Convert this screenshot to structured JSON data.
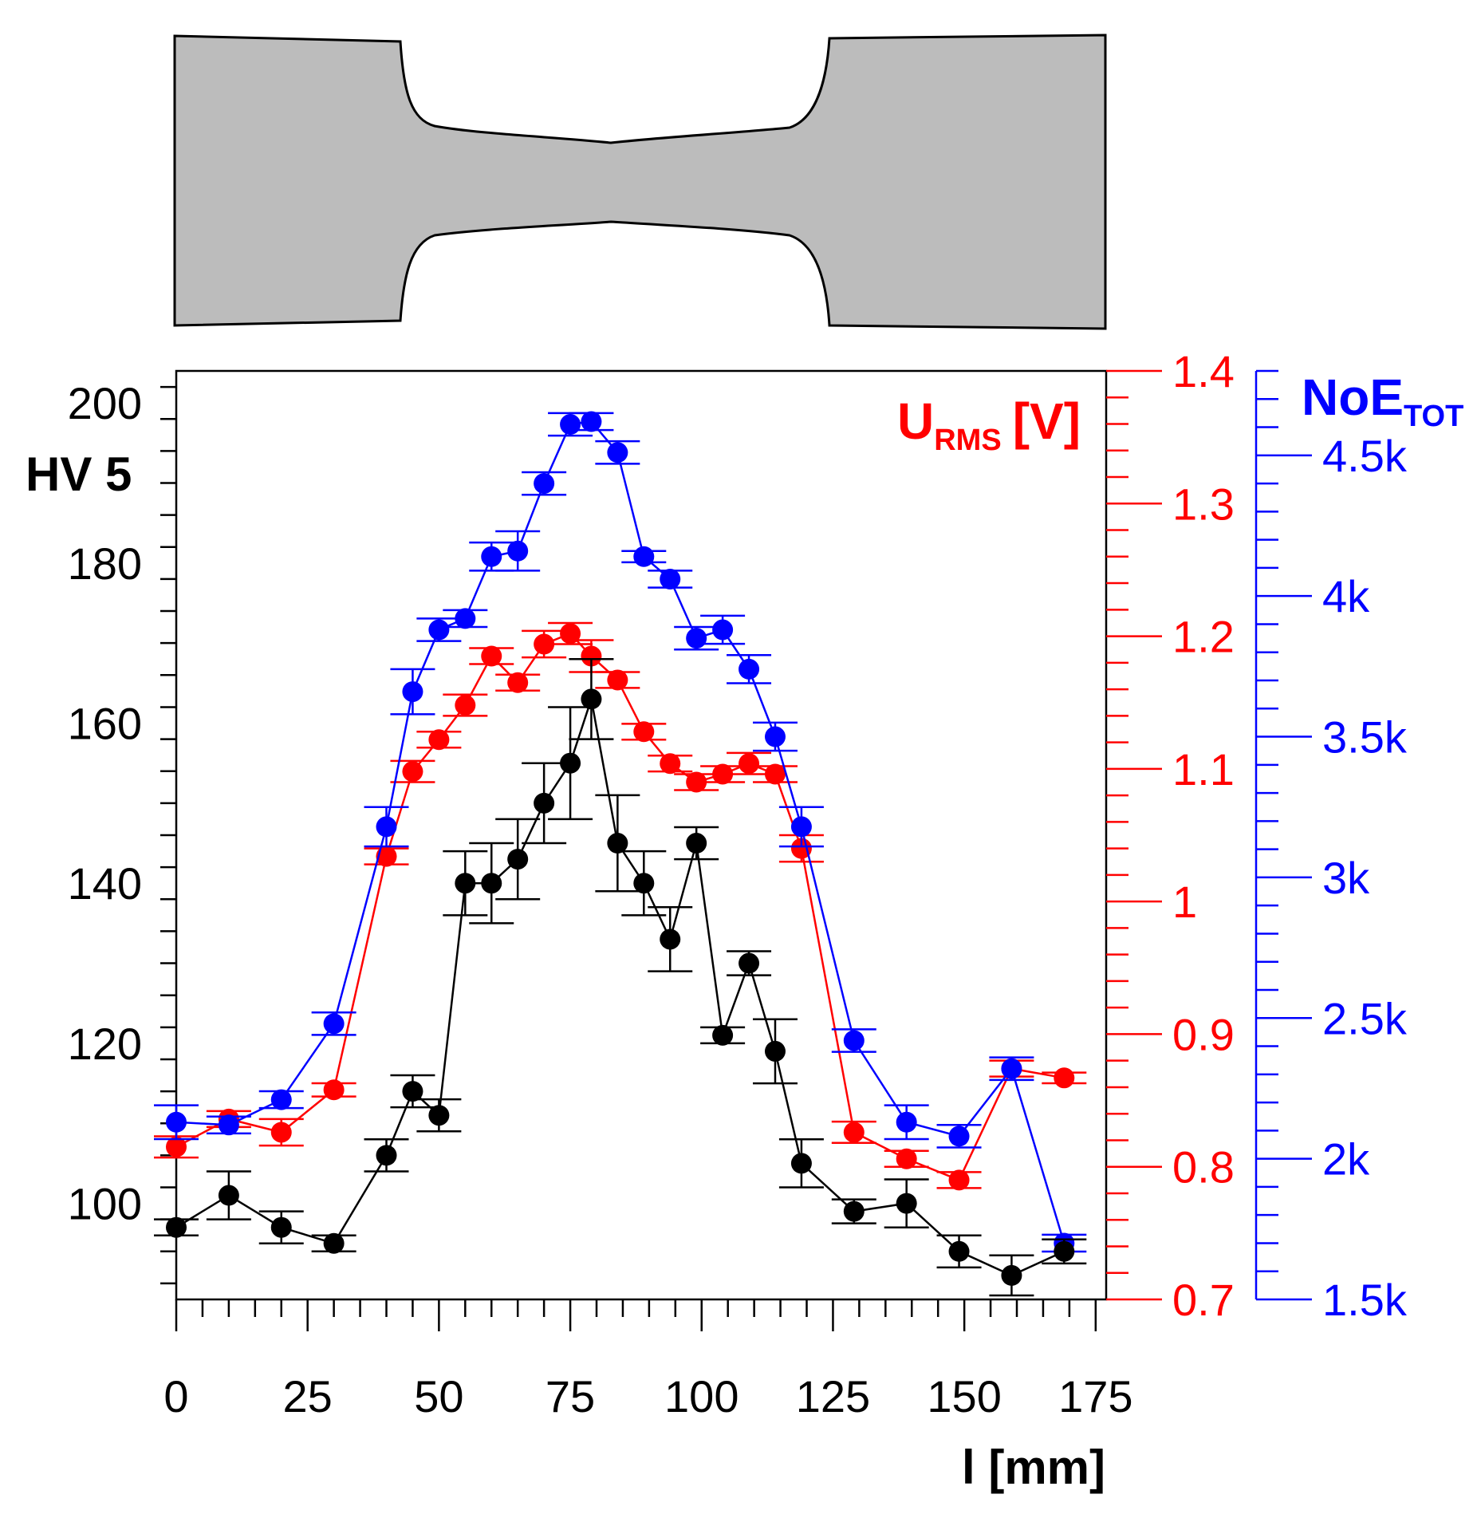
{
  "chart_data": {
    "type": "line",
    "title": "",
    "colors": {
      "hv": "#000000",
      "urms": "#ff0000",
      "noe": "#0000ff",
      "specimen": "#bcbcbc"
    },
    "x": {
      "label": "l [mm]",
      "range": [
        0,
        175
      ],
      "major_ticks": [
        0,
        25,
        50,
        75,
        100,
        125,
        150,
        175
      ],
      "tick_labels": [
        "0",
        "25",
        "50",
        "75",
        "100",
        "125",
        "150",
        "175"
      ]
    },
    "axis_left": {
      "label": "HV 5",
      "range": [
        88,
        204
      ],
      "major_ticks": [
        100,
        120,
        140,
        160,
        180,
        200
      ],
      "tick_labels": [
        "100",
        "120",
        "140",
        "160",
        "180",
        "200"
      ]
    },
    "axis_right_1": {
      "label_main": "U",
      "label_sub": "RMS",
      "label_unit": "[V]",
      "range": [
        0.7,
        1.4
      ],
      "major_ticks": [
        0.7,
        0.8,
        0.9,
        1.0,
        1.1,
        1.2,
        1.3,
        1.4
      ],
      "tick_labels": [
        "0.7",
        "0.8",
        "0.9",
        "1",
        "1.1",
        "1.2",
        "1.3",
        "1.4"
      ]
    },
    "axis_right_2": {
      "label_main": "NoE",
      "label_sub": "TOT",
      "range": [
        1500,
        4800
      ],
      "major_ticks": [
        1500,
        2000,
        2500,
        3000,
        3500,
        4000,
        4500
      ],
      "tick_labels": [
        "1.5k",
        "2k",
        "2.5k",
        "3k",
        "3.5k",
        "4k",
        "4.5k"
      ]
    },
    "series": [
      {
        "name": "HV 5",
        "axis": "left",
        "color": "#000000",
        "x": [
          0,
          10,
          20,
          30,
          40,
          45,
          50,
          55,
          60,
          65,
          70,
          75,
          79,
          84,
          89,
          94,
          99,
          104,
          109,
          114,
          119,
          129,
          139,
          149,
          159,
          169
        ],
        "y": [
          97,
          101,
          97,
          95,
          106,
          114,
          111,
          140,
          140,
          143,
          150,
          155,
          163,
          145,
          140,
          133,
          145,
          121,
          130,
          119,
          105,
          99,
          100,
          94,
          91,
          94
        ],
        "err": [
          1,
          3,
          2,
          1,
          2,
          2,
          2,
          4,
          5,
          5,
          5,
          7,
          5,
          6,
          4,
          4,
          2,
          1,
          1.5,
          4,
          3,
          1.5,
          3,
          2,
          2.5,
          1.5
        ]
      },
      {
        "name": "URMS",
        "axis": "right_1",
        "color": "#ff0000",
        "x": [
          0,
          10,
          20,
          30,
          40,
          45,
          50,
          55,
          60,
          65,
          70,
          75,
          79,
          84,
          89,
          94,
          99,
          104,
          109,
          114,
          119,
          129,
          139,
          149,
          159,
          169
        ],
        "y": [
          0.815,
          0.836,
          0.826,
          0.858,
          1.034,
          1.098,
          1.122,
          1.148,
          1.185,
          1.165,
          1.194,
          1.202,
          1.185,
          1.167,
          1.128,
          1.104,
          1.09,
          1.096,
          1.104,
          1.096,
          1.04,
          0.826,
          0.806,
          0.79,
          0.874,
          0.867
        ],
        "err": [
          0.008,
          0.006,
          0.01,
          0.005,
          0.006,
          0.008,
          0.006,
          0.008,
          0.006,
          0.006,
          0.01,
          0.008,
          0.012,
          0.006,
          0.006,
          0.006,
          0.006,
          0.006,
          0.008,
          0.006,
          0.01,
          0.008,
          0.006,
          0.006,
          0.006,
          0.004
        ]
      },
      {
        "name": "NoE TOT",
        "axis": "right_2",
        "color": "#0000ff",
        "x": [
          0,
          10,
          20,
          30,
          40,
          45,
          50,
          55,
          60,
          65,
          70,
          75,
          79,
          84,
          89,
          94,
          99,
          104,
          109,
          114,
          119,
          129,
          139,
          149,
          159,
          169
        ],
        "y": [
          2130,
          2120,
          2210,
          2480,
          3180,
          3660,
          3880,
          3920,
          4140,
          4160,
          4400,
          4610,
          4620,
          4510,
          4140,
          4060,
          3850,
          3880,
          3740,
          3500,
          3180,
          2420,
          2130,
          2080,
          2320,
          1700
        ],
        "err": [
          60,
          30,
          30,
          40,
          70,
          80,
          40,
          30,
          50,
          70,
          40,
          40,
          30,
          40,
          20,
          30,
          40,
          50,
          50,
          50,
          70,
          40,
          60,
          40,
          40,
          30
        ]
      }
    ]
  }
}
